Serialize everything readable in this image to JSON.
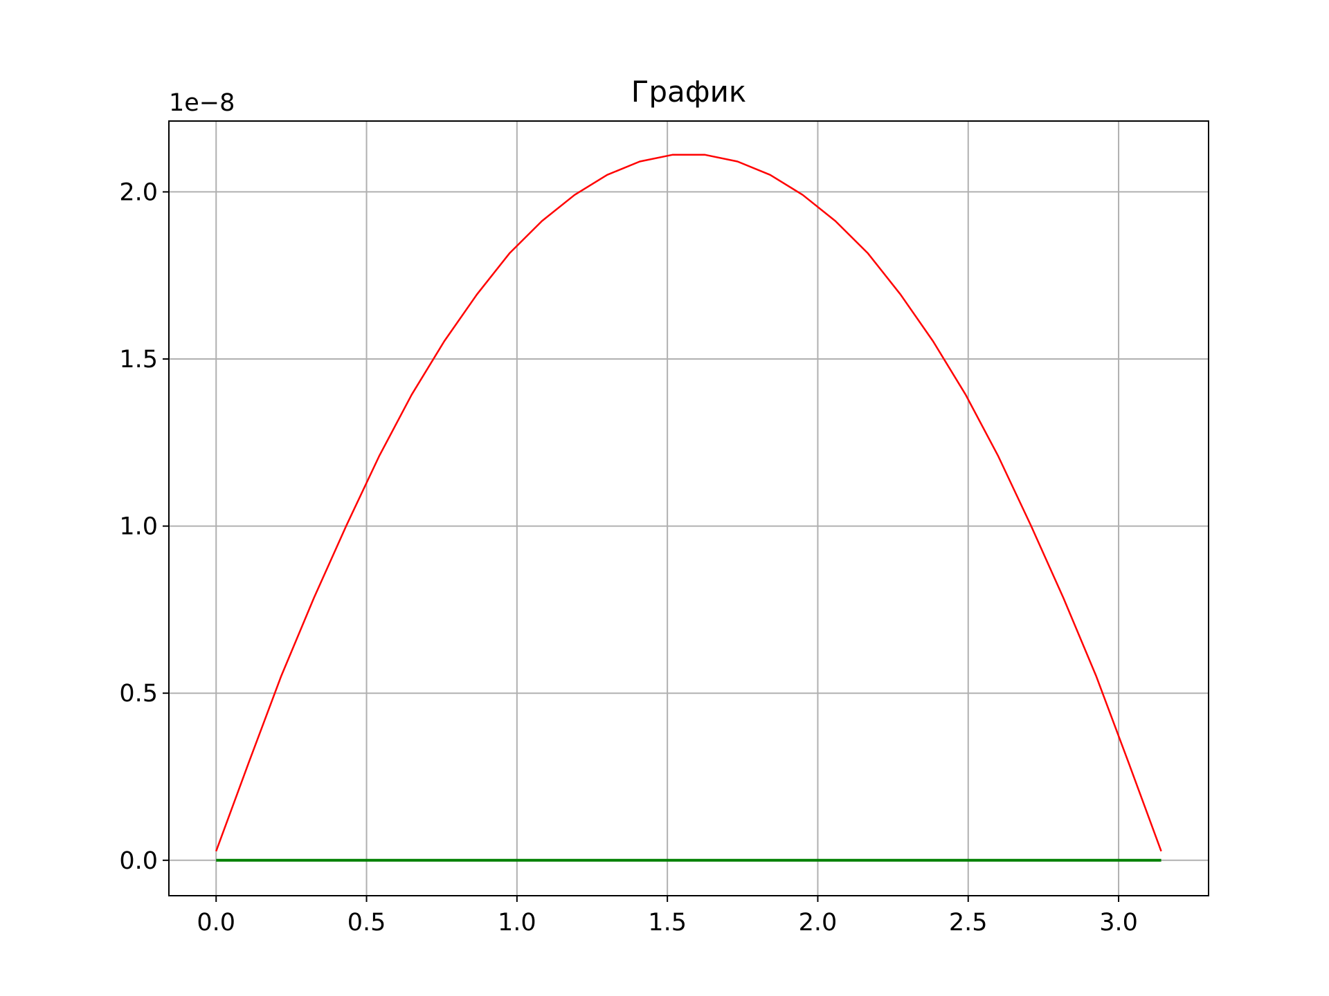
{
  "chart_data": {
    "type": "line",
    "title": "График",
    "xlabel": "",
    "ylabel": "",
    "y_offset_label": "1e−8",
    "xlim": [
      -0.157,
      3.299
    ],
    "ylim": [
      -0.106,
      2.212
    ],
    "x_ticks": [
      0.0,
      0.5,
      1.0,
      1.5,
      2.0,
      2.5,
      3.0
    ],
    "x_tick_labels": [
      "0.0",
      "0.5",
      "1.0",
      "1.5",
      "2.0",
      "2.5",
      "3.0"
    ],
    "y_ticks": [
      0.0,
      0.5,
      1.0,
      1.5,
      2.0
    ],
    "y_tick_labels": [
      "0.0",
      "0.5",
      "1.0",
      "1.5",
      "2.0"
    ],
    "grid": true,
    "series": [
      {
        "color": "#ff0000",
        "x": [
          0.0,
          0.1083,
          0.2167,
          0.325,
          0.4333,
          0.5417,
          0.65,
          0.7583,
          0.8666,
          0.975,
          1.0833,
          1.1916,
          1.3,
          1.4083,
          1.5166,
          1.625,
          1.7333,
          1.8416,
          1.95,
          2.0583,
          2.1666,
          2.275,
          2.3833,
          2.4916,
          2.6,
          2.7083,
          2.8166,
          2.925,
          3.0333,
          3.1416
        ],
        "y": [
          0.027,
          0.292,
          0.552,
          0.785,
          1.002,
          1.209,
          1.393,
          1.553,
          1.693,
          1.816,
          1.913,
          1.991,
          2.051,
          2.091,
          2.111,
          2.111,
          2.091,
          2.051,
          1.991,
          1.913,
          1.816,
          1.693,
          1.553,
          1.393,
          1.209,
          1.002,
          0.785,
          0.552,
          0.292,
          0.027
        ]
      },
      {
        "color": "#008000",
        "x": [
          0.0,
          3.1416
        ],
        "y": [
          0.0,
          0.0
        ]
      }
    ]
  }
}
